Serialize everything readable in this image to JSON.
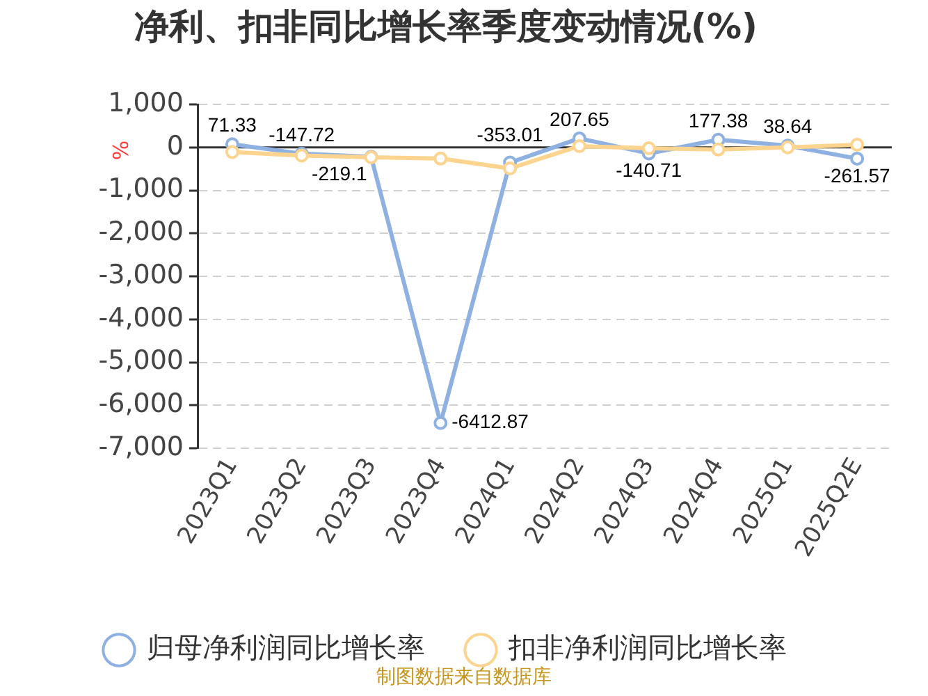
{
  "chart_data": {
    "type": "line",
    "title": "净利、扣非同比增长率季度变动情况(%)",
    "ylabel": "%",
    "categories": [
      "2023Q1",
      "2023Q2",
      "2023Q3",
      "2023Q4",
      "2024Q1",
      "2024Q2",
      "2024Q3",
      "2024Q4",
      "2025Q1",
      "2025Q2E"
    ],
    "series": [
      {
        "name": "归母净利润同比增长率",
        "color": "#8eb1e1",
        "values": [
          71.33,
          -147.72,
          -219.1,
          -6412.87,
          -353.01,
          207.65,
          -140.71,
          177.38,
          38.64,
          -261.57
        ],
        "value_labels": [
          "71.33",
          "-147.72",
          "-219.1",
          "-6412.87",
          "-353.01",
          "207.65",
          "-140.71",
          "177.38",
          "38.64",
          "-261.57"
        ]
      },
      {
        "name": "扣非净利润同比增长率",
        "color": "#fcd48f",
        "values": [
          -110,
          -190,
          -230,
          -260,
          -490,
          30,
          -20,
          -50,
          0,
          60
        ]
      }
    ],
    "ylim": [
      -7000,
      1000
    ],
    "yticks": [
      {
        "value": 1000,
        "label": "1,000"
      },
      0,
      {
        "value": -1000,
        "label": "-1,000"
      },
      {
        "value": -2000,
        "label": "-2,000"
      },
      {
        "value": -3000,
        "label": "-3,000"
      },
      {
        "value": -4000,
        "label": "-4,000"
      },
      {
        "value": -5000,
        "label": "-5,000"
      },
      {
        "value": -6000,
        "label": "-6,000"
      },
      {
        "value": -7000,
        "label": "-7,000"
      }
    ],
    "grid": "y",
    "legend": "bottom",
    "marker": "circle",
    "line_style": "solid",
    "annotations": [
      "制图数据来自数据库"
    ]
  }
}
